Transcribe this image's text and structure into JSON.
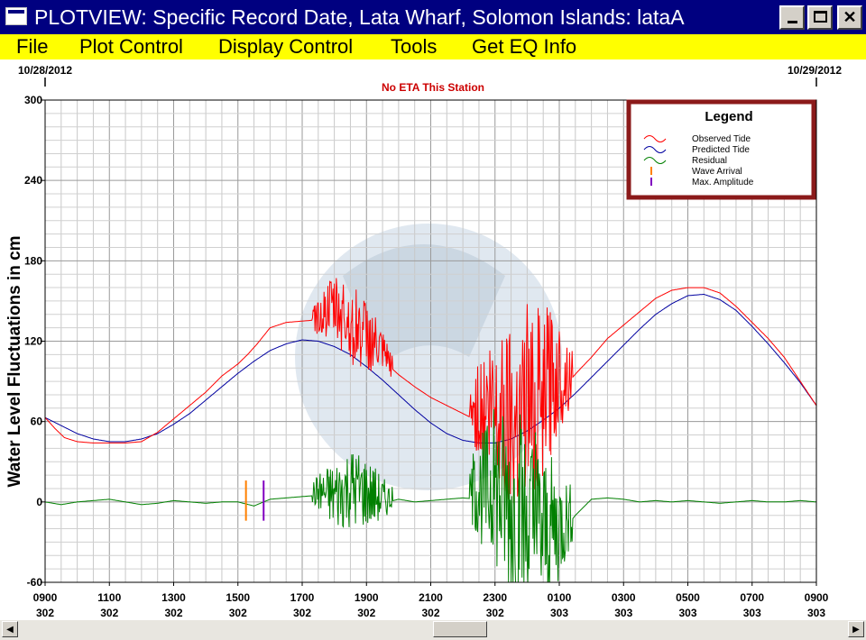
{
  "window": {
    "title": "PLOTVIEW: Specific Record Date, Lata Wharf, Solomon Islands: lataA",
    "min_glyph": "_",
    "max_glyph": "□",
    "close_glyph": "✕"
  },
  "menu": {
    "file": "File",
    "plot_control": "Plot Control",
    "display_control": "Display Control",
    "tools": "Tools",
    "get_eq_info": "Get EQ Info"
  },
  "scrollbar": {
    "left_arrow": "◀",
    "right_arrow": "▶"
  },
  "chart_data": {
    "type": "line",
    "subtitle": "No ETA This Station",
    "ylabel": "Water Level Fluctuations in cm",
    "xlabel": "",
    "ylim": [
      -60,
      300
    ],
    "yticks": [
      -60,
      0,
      60,
      120,
      180,
      240,
      300
    ],
    "xlim": [
      0,
      24
    ],
    "date_left": "10/28/2012",
    "date_right": "10/29/2012",
    "xticks": [
      {
        "h": 0,
        "time": "0900",
        "day": "302"
      },
      {
        "h": 2,
        "time": "1100",
        "day": "302"
      },
      {
        "h": 4,
        "time": "1300",
        "day": "302"
      },
      {
        "h": 6,
        "time": "1500",
        "day": "302"
      },
      {
        "h": 8,
        "time": "1700",
        "day": "302"
      },
      {
        "h": 10,
        "time": "1900",
        "day": "302"
      },
      {
        "h": 12,
        "time": "2100",
        "day": "302"
      },
      {
        "h": 14,
        "time": "2300",
        "day": "302"
      },
      {
        "h": 16,
        "time": "0100",
        "day": "303"
      },
      {
        "h": 18,
        "time": "0300",
        "day": "303"
      },
      {
        "h": 20,
        "time": "0500",
        "day": "303"
      },
      {
        "h": 22,
        "time": "0700",
        "day": "303"
      },
      {
        "h": 24,
        "time": "0900",
        "day": "303"
      }
    ],
    "grid": true,
    "legend_position": "top-right",
    "legend": {
      "title": "Legend",
      "items": [
        {
          "label": "Observed Tide",
          "color": "#ff0000",
          "symbol": "wave"
        },
        {
          "label": "Predicted Tide",
          "color": "#0000a0",
          "symbol": "wave"
        },
        {
          "label": "Residual",
          "color": "#008000",
          "symbol": "wave"
        },
        {
          "label": "Wave Arrival",
          "color": "#ff8000",
          "symbol": "bar"
        },
        {
          "label": "Max. Amplitude",
          "color": "#8000c0",
          "symbol": "bar"
        }
      ]
    },
    "series": [
      {
        "name": "Predicted Tide",
        "color": "#0000a0",
        "x": [
          0,
          0.5,
          1,
          1.5,
          2,
          2.5,
          3,
          3.5,
          4,
          4.5,
          5,
          5.5,
          6,
          6.5,
          7,
          7.5,
          8,
          8.5,
          9,
          9.5,
          10,
          10.5,
          11,
          11.5,
          12,
          12.5,
          13,
          13.5,
          14,
          14.5,
          15,
          15.5,
          16,
          16.5,
          17,
          17.5,
          18,
          18.5,
          19,
          19.5,
          20,
          20.5,
          21,
          21.5,
          22,
          22.5,
          23,
          23.5,
          24
        ],
        "y": [
          63,
          57,
          51,
          47,
          45,
          45,
          47,
          51,
          58,
          66,
          76,
          86,
          96,
          105,
          113,
          118,
          121,
          120,
          116,
          110,
          101,
          91,
          80,
          69,
          59,
          51,
          46,
          44,
          44,
          47,
          53,
          61,
          70,
          81,
          93,
          105,
          117,
          129,
          140,
          148,
          154,
          155,
          151,
          143,
          131,
          118,
          104,
          89,
          72
        ]
      },
      {
        "name": "Observed Tide",
        "color": "#ff0000",
        "x": [
          0,
          0.3,
          0.6,
          1,
          1.5,
          2,
          2.5,
          3,
          3.5,
          4,
          4.5,
          5,
          5.5,
          6,
          6.3,
          6.6,
          7,
          7.5,
          8,
          8.5,
          8.8,
          9,
          9.5,
          10,
          10.5,
          11,
          11.5,
          12,
          12.5,
          13,
          13.5,
          14,
          14.5,
          15,
          15.5,
          16,
          16.3,
          16.6,
          17,
          17.5,
          18,
          18.5,
          19,
          19.5,
          20,
          20.5,
          21,
          21.5,
          22,
          22.5,
          23,
          23.5,
          24
        ],
        "y": [
          63,
          55,
          48,
          45,
          44,
          44,
          44,
          45,
          52,
          62,
          72,
          82,
          94,
          103,
          110,
          118,
          130,
          134,
          135,
          136,
          138,
          139,
          128,
          118,
          106,
          95,
          86,
          78,
          72,
          66,
          60,
          58,
          58,
          62,
          70,
          84,
          90,
          98,
          108,
          122,
          132,
          142,
          152,
          158,
          160,
          160,
          156,
          146,
          134,
          122,
          108,
          90,
          72
        ]
      },
      {
        "name": "Residual",
        "color": "#008000",
        "x": [
          0,
          0.5,
          1,
          1.5,
          2,
          2.5,
          3,
          3.5,
          4,
          4.5,
          5,
          5.5,
          6,
          6.5,
          7,
          7.5,
          8,
          8.5,
          9,
          9.5,
          10,
          10.5,
          11,
          11.5,
          12,
          12.5,
          13,
          13.5,
          14,
          14.5,
          15,
          15.5,
          16,
          16.5,
          17,
          17.5,
          18,
          18.5,
          19,
          19.5,
          20,
          20.5,
          21,
          21.5,
          22,
          22.5,
          23,
          23.5,
          24
        ],
        "y": [
          0,
          -2,
          0,
          1,
          2,
          0,
          -2,
          -1,
          1,
          0,
          -1,
          0,
          0,
          -3,
          2,
          3,
          4,
          5,
          0,
          6,
          2,
          -1,
          2,
          0,
          1,
          2,
          3,
          2,
          -1,
          -20,
          -30,
          -35,
          -25,
          -10,
          2,
          3,
          2,
          0,
          1,
          0,
          1,
          0,
          -1,
          0,
          1,
          0,
          0,
          1,
          0
        ]
      }
    ],
    "bursts": [
      {
        "series": "Observed Tide",
        "start": 8.3,
        "end": 10.8,
        "amp": "medium"
      },
      {
        "series": "Observed Tide",
        "start": 13.2,
        "end": 16.4,
        "amp": "large"
      },
      {
        "series": "Residual",
        "start": 8.3,
        "end": 10.8,
        "amp": "medium"
      },
      {
        "series": "Residual",
        "start": 13.2,
        "end": 16.4,
        "amp": "large"
      }
    ],
    "markers": [
      {
        "name": "Wave Arrival",
        "x": 6.25,
        "y_low": -14,
        "y_high": 16,
        "color": "#ff8000"
      },
      {
        "name": "Max. Amplitude",
        "x": 6.8,
        "y_low": -14,
        "y_high": 16,
        "color": "#8000c0"
      }
    ],
    "logo": "NOAA"
  }
}
